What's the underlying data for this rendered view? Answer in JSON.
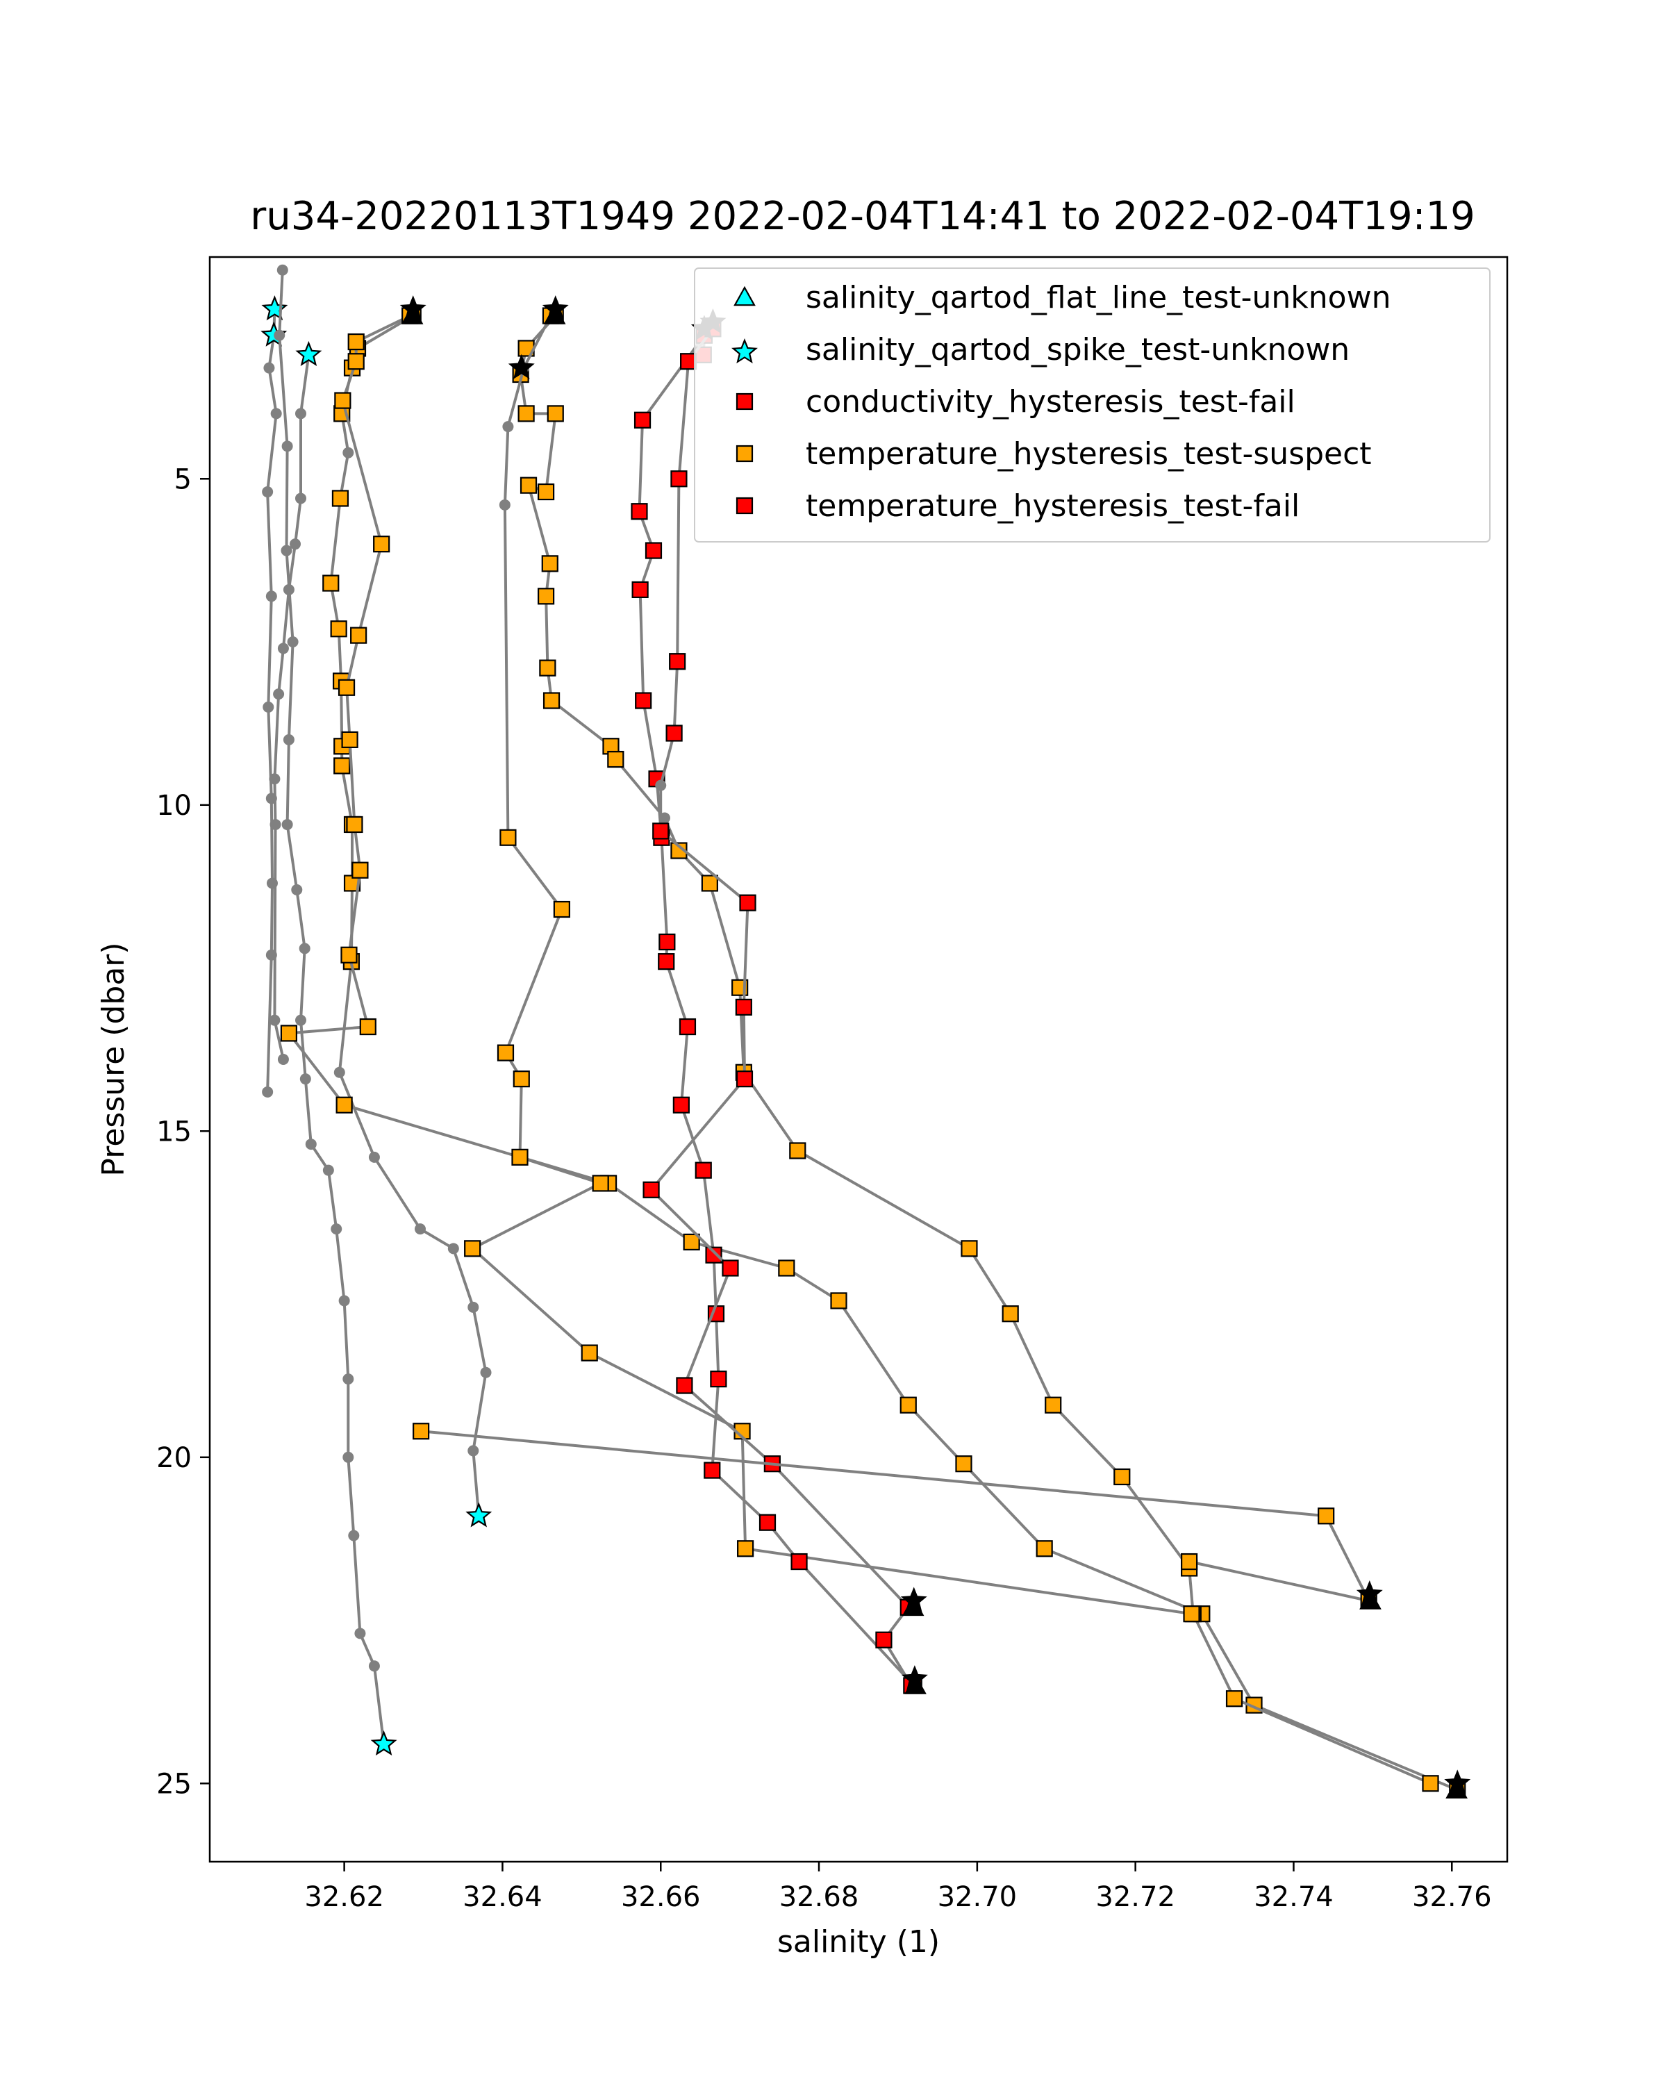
{
  "chart_data": {
    "type": "scatter",
    "title": "ru34-20220113T1949 2022-02-04T14:41 to 2022-02-04T19:19",
    "xlabel": "salinity (1)",
    "ylabel": "Pressure (dbar)",
    "xlim": [
      32.603,
      32.767
    ],
    "ylim": [
      26.2,
      1.6
    ],
    "y_inverted": true,
    "grid": false,
    "legend_position": "upper right",
    "x_ticks": [
      "32.62",
      "32.64",
      "32.66",
      "32.68",
      "32.70",
      "32.72",
      "32.74",
      "32.76"
    ],
    "x_tick_values": [
      32.62,
      32.64,
      32.66,
      32.68,
      32.7,
      32.72,
      32.74,
      32.76
    ],
    "y_ticks": [
      "5",
      "10",
      "15",
      "20",
      "25"
    ],
    "y_tick_values": [
      5,
      10,
      15,
      20,
      25
    ],
    "colors": {
      "line": "#808080",
      "cyan": "#00ffff",
      "orange": "#ffa500",
      "red": "#ff0000",
      "edge": "#000000"
    },
    "legend": [
      {
        "label": "salinity_qartod_flat_line_test-unknown",
        "marker": "triangle",
        "color": "#00ffff"
      },
      {
        "label": "salinity_qartod_spike_test-unknown",
        "marker": "star",
        "color": "#00ffff"
      },
      {
        "label": "conductivity_hysteresis_test-fail",
        "marker": "square",
        "color": "#ff0000"
      },
      {
        "label": "temperature_hysteresis_test-suspect",
        "marker": "square",
        "color": "#ffa500"
      },
      {
        "label": "temperature_hysteresis_test-fail",
        "marker": "square",
        "color": "#ff0000"
      }
    ],
    "series": [
      {
        "points": [
          [
            32.6112,
            2.4,
            "spike"
          ],
          [
            32.6111,
            2.8,
            "spike"
          ],
          [
            32.6105,
            3.3,
            null
          ],
          [
            32.6114,
            4.0,
            null
          ],
          [
            32.6103,
            5.2,
            null
          ],
          [
            32.6108,
            6.8,
            null
          ],
          [
            32.6104,
            8.5,
            null
          ],
          [
            32.6108,
            9.9,
            null
          ],
          [
            32.6109,
            11.2,
            null
          ],
          [
            32.6108,
            12.3,
            null
          ],
          [
            32.6103,
            14.4,
            null
          ]
        ]
      },
      {
        "points": [
          [
            32.6155,
            3.1,
            "spike"
          ],
          [
            32.6145,
            4.0,
            null
          ],
          [
            32.6145,
            5.3,
            null
          ],
          [
            32.6138,
            6.0,
            null
          ],
          [
            32.613,
            6.7,
            null
          ],
          [
            32.6123,
            7.6,
            null
          ],
          [
            32.6117,
            8.3,
            null
          ],
          [
            32.6112,
            9.6,
            null
          ],
          [
            32.6113,
            10.3,
            null
          ],
          [
            32.6112,
            13.3,
            null
          ],
          [
            32.6123,
            13.9,
            null
          ]
        ]
      },
      {
        "points": [
          [
            32.6122,
            1.8,
            null
          ],
          [
            32.6118,
            2.8,
            null
          ],
          [
            32.6128,
            4.5,
            null
          ],
          [
            32.6127,
            6.1,
            null
          ],
          [
            32.6135,
            7.5,
            null
          ],
          [
            32.613,
            9.0,
            null
          ],
          [
            32.6128,
            10.3,
            null
          ],
          [
            32.614,
            11.3,
            null
          ],
          [
            32.615,
            12.2,
            null
          ],
          [
            32.6145,
            13.3,
            null
          ],
          [
            32.6151,
            14.2,
            null
          ],
          [
            32.6158,
            15.2,
            null
          ],
          [
            32.618,
            15.6,
            null
          ],
          [
            32.619,
            16.5,
            null
          ],
          [
            32.62,
            17.6,
            null
          ],
          [
            32.6205,
            18.8,
            null
          ],
          [
            32.6205,
            20.0,
            null
          ],
          [
            32.6212,
            21.2,
            null
          ],
          [
            32.622,
            22.7,
            null
          ],
          [
            32.6238,
            23.2,
            null
          ],
          [
            32.625,
            24.4,
            "spike"
          ]
        ]
      },
      {
        "points": [
          [
            32.6287,
            2.5,
            "suspect"
          ],
          [
            32.6217,
            3.0,
            "suspect"
          ],
          [
            32.621,
            3.3,
            "suspect"
          ],
          [
            32.6197,
            4.0,
            "suspect"
          ],
          [
            32.6205,
            4.6,
            null
          ],
          [
            32.6195,
            5.3,
            "suspect"
          ],
          [
            32.6183,
            6.6,
            "suspect"
          ],
          [
            32.6193,
            7.3,
            "suspect"
          ],
          [
            32.6196,
            8.1,
            "suspect"
          ],
          [
            32.6197,
            9.1,
            "suspect"
          ],
          [
            32.6197,
            9.4,
            "suspect"
          ],
          [
            32.621,
            10.3,
            "suspect"
          ],
          [
            32.621,
            11.2,
            "suspect"
          ],
          [
            32.6209,
            12.4,
            "suspect"
          ],
          [
            32.6194,
            14.1,
            null
          ],
          [
            32.6238,
            15.4,
            null
          ],
          [
            32.6296,
            16.5,
            null
          ],
          [
            32.6338,
            16.8,
            null
          ],
          [
            32.6363,
            17.7,
            null
          ],
          [
            32.6379,
            18.7,
            null
          ],
          [
            32.6363,
            19.9,
            null
          ],
          [
            32.637,
            20.9,
            "spike"
          ]
        ]
      },
      {
        "points": [
          [
            32.6283,
            2.5,
            "suspect"
          ],
          [
            32.6215,
            2.9,
            "suspect"
          ],
          [
            32.6215,
            3.2,
            "suspect"
          ],
          [
            32.6198,
            3.8,
            "suspect"
          ],
          [
            32.6247,
            6.0,
            "suspect"
          ],
          [
            32.6218,
            7.4,
            "suspect"
          ],
          [
            32.6203,
            8.2,
            "suspect"
          ],
          [
            32.6207,
            9.0,
            "suspect"
          ],
          [
            32.6213,
            10.3,
            "suspect"
          ],
          [
            32.622,
            11.0,
            "suspect"
          ],
          [
            32.6206,
            12.3,
            "suspect"
          ],
          [
            32.623,
            13.4,
            "suspect"
          ],
          [
            32.613,
            13.5,
            "suspect"
          ],
          [
            32.62,
            14.6,
            "suspect"
          ],
          [
            32.6534,
            15.8,
            "suspect"
          ],
          [
            32.6639,
            16.7,
            "suspect"
          ],
          [
            32.6759,
            17.1,
            "suspect"
          ],
          [
            32.6825,
            17.6,
            "suspect"
          ],
          [
            32.6913,
            19.2,
            "suspect"
          ],
          [
            32.6983,
            20.1,
            "suspect"
          ],
          [
            32.7085,
            21.4,
            "suspect"
          ],
          [
            32.7284,
            22.4,
            "suspect"
          ],
          [
            32.735,
            23.8,
            "suspect"
          ],
          [
            32.7607,
            25.1,
            "suspect"
          ]
        ]
      },
      {
        "points": [
          [
            32.6467,
            2.5,
            "suspect"
          ],
          [
            32.643,
            3.0,
            "suspect"
          ],
          [
            32.6423,
            3.4,
            "suspect"
          ],
          [
            32.643,
            4.0,
            "suspect"
          ],
          [
            32.6467,
            4.0,
            "suspect"
          ],
          [
            32.6455,
            5.2,
            "suspect"
          ],
          [
            32.6433,
            5.1,
            "suspect"
          ],
          [
            32.646,
            6.3,
            "suspect"
          ],
          [
            32.6455,
            6.8,
            "suspect"
          ],
          [
            32.6457,
            7.9,
            "suspect"
          ],
          [
            32.6462,
            8.4,
            "suspect"
          ],
          [
            32.6537,
            9.1,
            "suspect"
          ],
          [
            32.6543,
            9.3,
            "suspect"
          ],
          [
            32.6605,
            10.2,
            null
          ],
          [
            32.6623,
            10.7,
            "suspect"
          ],
          [
            32.6662,
            11.2,
            "suspect"
          ],
          [
            32.67,
            12.8,
            "suspect"
          ],
          [
            32.6705,
            14.1,
            "suspect"
          ],
          [
            32.6773,
            15.3,
            "suspect"
          ],
          [
            32.699,
            16.8,
            "suspect"
          ],
          [
            32.7042,
            17.8,
            "suspect"
          ],
          [
            32.7096,
            19.2,
            "suspect"
          ],
          [
            32.7183,
            20.3,
            "suspect"
          ],
          [
            32.7268,
            21.7,
            "suspect"
          ],
          [
            32.7273,
            22.4,
            "suspect"
          ],
          [
            32.7325,
            23.7,
            "suspect"
          ],
          [
            32.7573,
            25.0,
            "suspect"
          ]
        ]
      },
      {
        "points": [
          [
            32.6461,
            2.5,
            "suspect"
          ],
          [
            32.6427,
            3.3,
            null
          ],
          [
            32.6407,
            4.2,
            null
          ],
          [
            32.6403,
            5.4,
            null
          ],
          [
            32.6407,
            10.5,
            "suspect"
          ],
          [
            32.6475,
            11.6,
            "suspect"
          ],
          [
            32.6404,
            13.8,
            "suspect"
          ],
          [
            32.6424,
            14.2,
            "suspect"
          ],
          [
            32.6422,
            15.4,
            "suspect"
          ],
          [
            32.6524,
            15.8,
            "suspect"
          ],
          [
            32.6362,
            16.8,
            "suspect"
          ],
          [
            32.651,
            18.4,
            "suspect"
          ],
          [
            32.6703,
            19.6,
            "suspect"
          ],
          [
            32.6707,
            21.4,
            "suspect"
          ],
          [
            32.7271,
            22.4,
            "suspect"
          ]
        ]
      },
      {
        "points": [
          [
            32.6654,
            3.1,
            "fail"
          ],
          [
            32.6655,
            2.8,
            "fail"
          ],
          [
            32.6577,
            4.1,
            "fail"
          ],
          [
            32.6573,
            5.5,
            "fail"
          ],
          [
            32.6591,
            6.1,
            "fail"
          ],
          [
            32.6574,
            6.7,
            "fail"
          ],
          [
            32.6578,
            8.4,
            "fail"
          ],
          [
            32.6595,
            9.6,
            "fail"
          ],
          [
            32.6601,
            10.5,
            "fail"
          ],
          [
            32.6608,
            12.1,
            "fail"
          ],
          [
            32.6607,
            12.4,
            "fail"
          ],
          [
            32.6634,
            13.4,
            "fail"
          ],
          [
            32.6626,
            14.6,
            "fail"
          ],
          [
            32.6654,
            15.6,
            "fail"
          ],
          [
            32.6667,
            16.9,
            "fail"
          ],
          [
            32.667,
            17.8,
            "fail"
          ],
          [
            32.6673,
            18.8,
            "fail"
          ],
          [
            32.6665,
            20.2,
            "fail"
          ],
          [
            32.6735,
            21.0,
            "fail"
          ],
          [
            32.6775,
            21.6,
            "fail"
          ],
          [
            32.692,
            23.5,
            "fail"
          ]
        ]
      },
      {
        "points": [
          [
            32.6666,
            2.7,
            "fail"
          ],
          [
            32.6635,
            3.2,
            "fail"
          ],
          [
            32.6623,
            5.0,
            "fail"
          ],
          [
            32.6621,
            7.8,
            "fail"
          ],
          [
            32.6617,
            8.9,
            "fail"
          ],
          [
            32.66,
            9.7,
            null
          ],
          [
            32.66,
            10.4,
            "fail"
          ],
          [
            32.671,
            11.5,
            "fail"
          ],
          [
            32.6705,
            13.1,
            "fail"
          ],
          [
            32.6706,
            14.2,
            "fail"
          ],
          [
            32.6588,
            15.9,
            "fail"
          ],
          [
            32.6688,
            17.1,
            "fail"
          ],
          [
            32.663,
            18.9,
            "fail"
          ],
          [
            32.6741,
            20.1,
            "fail"
          ],
          [
            32.6913,
            22.3,
            "fail"
          ],
          [
            32.6882,
            22.8,
            "fail"
          ],
          [
            32.6917,
            23.5,
            "fail"
          ]
        ]
      },
      {
        "points": [
          [
            32.6297,
            19.6,
            "suspect"
          ],
          [
            32.7441,
            20.9,
            "suspect"
          ],
          [
            32.7495,
            22.2,
            "suspect"
          ],
          [
            32.7268,
            21.6,
            "suspect"
          ]
        ]
      }
    ],
    "flat_line_points": [
      [
        32.6286,
        2.5
      ],
      [
        32.6466,
        2.5
      ],
      [
        32.6919,
        22.3
      ],
      [
        32.6922,
        23.5
      ],
      [
        32.7497,
        22.2
      ],
      [
        32.7606,
        25.1
      ]
    ],
    "spike_points": [
      [
        32.6287,
        2.4
      ],
      [
        32.6467,
        2.4
      ],
      [
        32.6666,
        2.6
      ],
      [
        32.6655,
        2.7
      ],
      [
        32.6424,
        3.3
      ],
      [
        32.692,
        22.2
      ],
      [
        32.6921,
        23.4
      ],
      [
        32.7496,
        22.1
      ],
      [
        32.7607,
        25.0
      ]
    ]
  }
}
